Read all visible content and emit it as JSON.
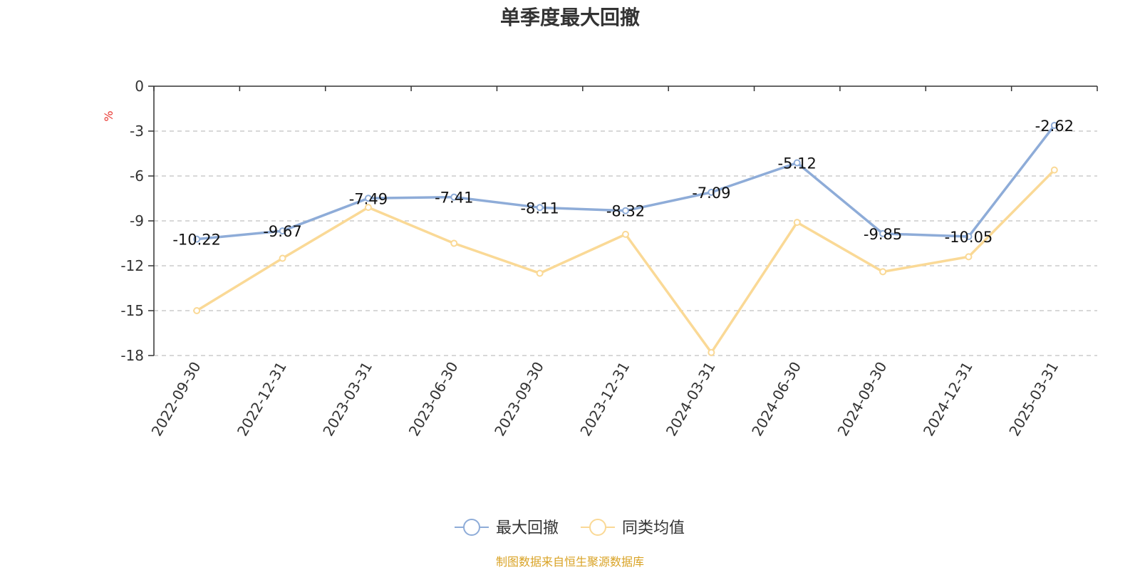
{
  "chart_data": {
    "type": "line",
    "title": "单季度最大回撤",
    "ylabel": "%",
    "ylim": [
      -18,
      0
    ],
    "yticks": [
      0,
      -3,
      -6,
      -9,
      -12,
      -15,
      -18
    ],
    "grid": true,
    "legend_position": "bottom-center",
    "categories": [
      "2022-09-30",
      "2022-12-31",
      "2023-03-31",
      "2023-06-30",
      "2023-09-30",
      "2023-12-31",
      "2024-03-31",
      "2024-06-30",
      "2024-09-30",
      "2024-12-31",
      "2025-03-31"
    ],
    "series": [
      {
        "name": "最大回撤",
        "color": "#8eacd8",
        "values": [
          -10.22,
          -9.67,
          -7.49,
          -7.41,
          -8.11,
          -8.32,
          -7.09,
          -5.12,
          -9.85,
          -10.05,
          -2.62
        ],
        "labels": [
          "-10.22",
          "-9.67",
          "-7.49",
          "-7.41",
          "-8.11",
          "-8.32",
          "-7.09",
          "-5.12",
          "-9.85",
          "-10.05",
          "-2.62"
        ]
      },
      {
        "name": "同类均值",
        "color": "#fad996",
        "values": [
          -15.0,
          -11.5,
          -8.1,
          -10.5,
          -12.5,
          -9.9,
          -17.8,
          -9.1,
          -12.4,
          -11.4,
          -5.6
        ]
      }
    ]
  },
  "colors": {
    "unit_label": "#e8342e",
    "source": "#d9a326",
    "axis": "#333333",
    "grid": "#cccccc"
  },
  "source_note": "制图数据来自恒生聚源数据库"
}
